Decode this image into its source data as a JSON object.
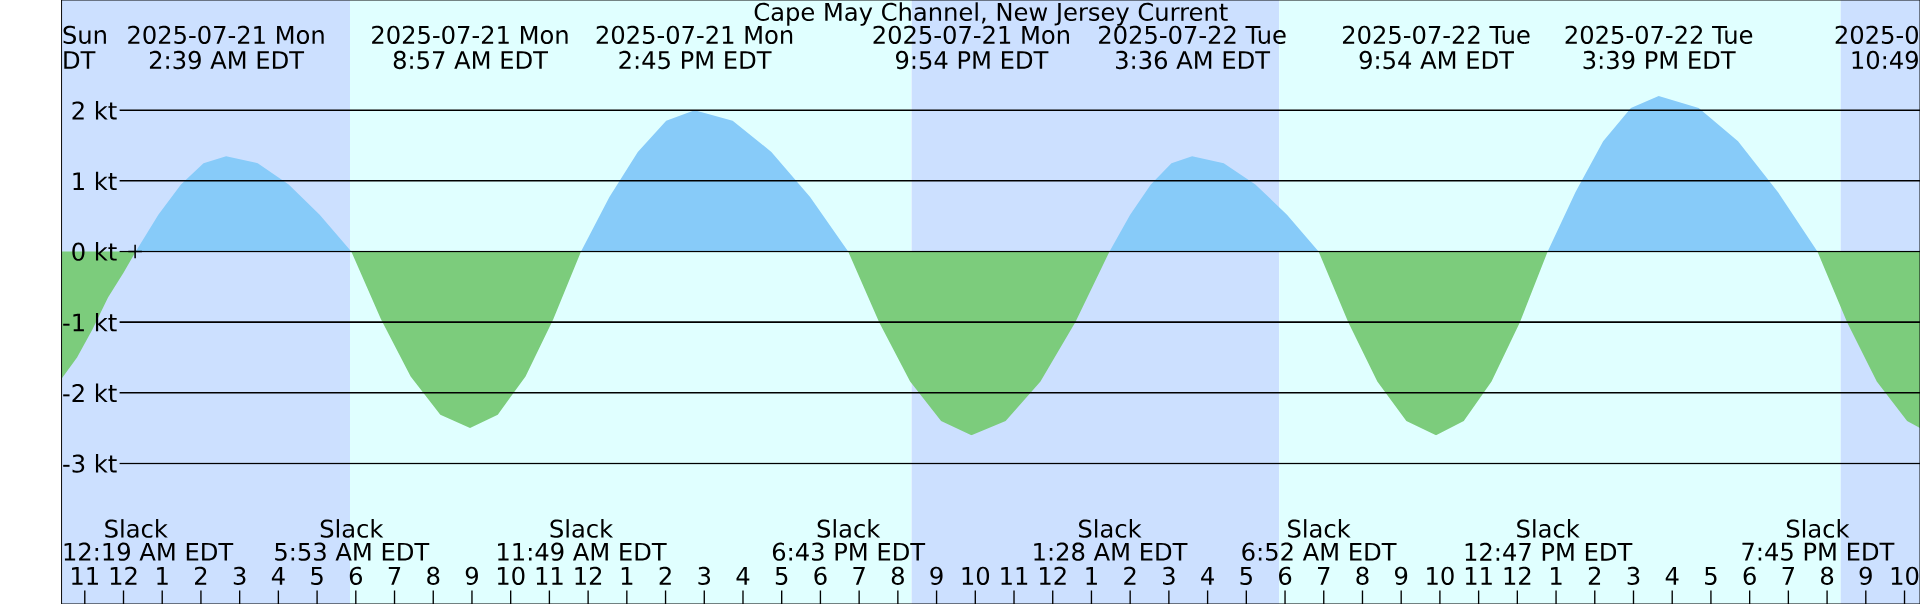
{
  "chart_data": {
    "type": "area",
    "title": "Cape May Channel, New Jersey Current",
    "xlim": [
      "2025-07-20T22:24",
      "2025-07-22T22:24"
    ],
    "ylim": [
      -4.99,
      3.56
    ],
    "xticks": [
      {
        "value": "2025-07-20T23:00",
        "label": "11"
      },
      {
        "value": "2025-07-21T00:00",
        "label": "12"
      },
      {
        "value": "2025-07-21T01:00",
        "label": "1"
      },
      {
        "value": "2025-07-21T02:00",
        "label": "2"
      },
      {
        "value": "2025-07-21T03:00",
        "label": "3"
      },
      {
        "value": "2025-07-21T04:00",
        "label": "4"
      },
      {
        "value": "2025-07-21T05:00",
        "label": "5"
      },
      {
        "value": "2025-07-21T06:00",
        "label": "6"
      },
      {
        "value": "2025-07-21T07:00",
        "label": "7"
      },
      {
        "value": "2025-07-21T08:00",
        "label": "8"
      },
      {
        "value": "2025-07-21T09:00",
        "label": "9"
      },
      {
        "value": "2025-07-21T10:00",
        "label": "10"
      },
      {
        "value": "2025-07-21T11:00",
        "label": "11"
      },
      {
        "value": "2025-07-21T12:00",
        "label": "12"
      },
      {
        "value": "2025-07-21T13:00",
        "label": "1"
      },
      {
        "value": "2025-07-21T14:00",
        "label": "2"
      },
      {
        "value": "2025-07-21T15:00",
        "label": "3"
      },
      {
        "value": "2025-07-21T16:00",
        "label": "4"
      },
      {
        "value": "2025-07-21T17:00",
        "label": "5"
      },
      {
        "value": "2025-07-21T18:00",
        "label": "6"
      },
      {
        "value": "2025-07-21T19:00",
        "label": "7"
      },
      {
        "value": "2025-07-21T20:00",
        "label": "8"
      },
      {
        "value": "2025-07-21T21:00",
        "label": "9"
      },
      {
        "value": "2025-07-21T22:00",
        "label": "10"
      },
      {
        "value": "2025-07-21T23:00",
        "label": "11"
      },
      {
        "value": "2025-07-22T00:00",
        "label": "12"
      },
      {
        "value": "2025-07-22T01:00",
        "label": "1"
      },
      {
        "value": "2025-07-22T02:00",
        "label": "2"
      },
      {
        "value": "2025-07-22T03:00",
        "label": "3"
      },
      {
        "value": "2025-07-22T04:00",
        "label": "4"
      },
      {
        "value": "2025-07-22T05:00",
        "label": "5"
      },
      {
        "value": "2025-07-22T06:00",
        "label": "6"
      },
      {
        "value": "2025-07-22T07:00",
        "label": "7"
      },
      {
        "value": "2025-07-22T08:00",
        "label": "8"
      },
      {
        "value": "2025-07-22T09:00",
        "label": "9"
      },
      {
        "value": "2025-07-22T10:00",
        "label": "10"
      },
      {
        "value": "2025-07-22T11:00",
        "label": "11"
      },
      {
        "value": "2025-07-22T12:00",
        "label": "12"
      },
      {
        "value": "2025-07-22T13:00",
        "label": "1"
      },
      {
        "value": "2025-07-22T14:00",
        "label": "2"
      },
      {
        "value": "2025-07-22T15:00",
        "label": "3"
      },
      {
        "value": "2025-07-22T16:00",
        "label": "4"
      },
      {
        "value": "2025-07-22T17:00",
        "label": "5"
      },
      {
        "value": "2025-07-22T18:00",
        "label": "6"
      },
      {
        "value": "2025-07-22T19:00",
        "label": "7"
      },
      {
        "value": "2025-07-22T20:00",
        "label": "8"
      },
      {
        "value": "2025-07-22T21:00",
        "label": "9"
      },
      {
        "value": "2025-07-22T22:00",
        "label": "10"
      }
    ],
    "yticks": [
      {
        "value": 2,
        "label": "2 kt"
      },
      {
        "value": 1,
        "label": "1 kt"
      },
      {
        "value": 0,
        "label": "0 kt"
      },
      {
        "value": -1,
        "label": "-1 kt"
      },
      {
        "value": -2,
        "label": "-2 kt"
      },
      {
        "value": -3,
        "label": "-3 kt"
      }
    ],
    "grid": "y",
    "bands": [
      {
        "axis": "x",
        "from": "2025-07-20T22:24",
        "to": "2025-07-21T05:51",
        "color": "#cce0ff"
      },
      {
        "axis": "x",
        "from": "2025-07-21T05:51",
        "to": "2025-07-21T20:21",
        "color": "#e0ffff"
      },
      {
        "axis": "x",
        "from": "2025-07-21T20:21",
        "to": "2025-07-22T05:51",
        "color": "#cce0ff"
      },
      {
        "axis": "x",
        "from": "2025-07-22T05:51",
        "to": "2025-07-22T20:21",
        "color": "#e0ffff"
      },
      {
        "axis": "x",
        "from": "2025-07-22T20:21",
        "to": "2025-07-22T22:24",
        "color": "#cce0ff"
      }
    ],
    "series": [
      {
        "color": "#87cbf9",
        "x": [
          "2025-07-21T00:19",
          "2025-07-21T00:54",
          "2025-07-21T01:29",
          "2025-07-21T02:04",
          "2025-07-21T02:39",
          "2025-07-21T03:28",
          "2025-07-21T04:16",
          "2025-07-21T05:04",
          "2025-07-21T05:53",
          "2025-07-21T11:49",
          "2025-07-21T12:33",
          "2025-07-21T13:17",
          "2025-07-21T14:01",
          "2025-07-21T14:45",
          "2025-07-21T15:44",
          "2025-07-21T16:44",
          "2025-07-21T17:44",
          "2025-07-21T18:43",
          "2025-07-22T01:28",
          "2025-07-22T02:00",
          "2025-07-22T02:32",
          "2025-07-22T03:04",
          "2025-07-22T03:36",
          "2025-07-22T04:25",
          "2025-07-22T05:14",
          "2025-07-22T06:03",
          "2025-07-22T06:52",
          "2025-07-22T12:47",
          "2025-07-22T13:30",
          "2025-07-22T14:13",
          "2025-07-22T14:56",
          "2025-07-22T15:39",
          "2025-07-22T16:41",
          "2025-07-22T17:42",
          "2025-07-22T18:44",
          "2025-07-22T19:45"
        ],
        "values": [
          0,
          0.52,
          0.95,
          1.25,
          1.35,
          1.25,
          0.95,
          0.52,
          0,
          0,
          0.77,
          1.41,
          1.85,
          2.0,
          1.85,
          1.41,
          0.77,
          0,
          0,
          0.52,
          0.95,
          1.25,
          1.35,
          1.25,
          0.95,
          0.52,
          0,
          0,
          0.84,
          1.56,
          2.03,
          2.2,
          2.03,
          1.56,
          0.84,
          0
        ]
      },
      {
        "color": "#7ccc7c",
        "x": [
          "2025-07-20T22:24",
          "2025-07-20T22:48",
          "2025-07-20T23:12",
          "2025-07-20T23:36",
          "2025-07-21T00:00",
          "2025-07-21T00:19",
          "2025-07-21T05:53",
          "2025-07-21T06:39",
          "2025-07-21T07:25",
          "2025-07-21T08:11",
          "2025-07-21T08:57",
          "2025-07-21T09:40",
          "2025-07-21T10:23",
          "2025-07-21T11:06",
          "2025-07-21T11:49",
          "2025-07-21T18:43",
          "2025-07-21T19:31",
          "2025-07-21T20:19",
          "2025-07-21T21:07",
          "2025-07-21T21:54",
          "2025-07-21T22:47",
          "2025-07-21T23:41",
          "2025-07-22T00:35",
          "2025-07-22T01:28",
          "2025-07-22T06:52",
          "2025-07-22T07:38",
          "2025-07-22T08:23",
          "2025-07-22T09:08",
          "2025-07-22T09:54",
          "2025-07-22T10:37",
          "2025-07-22T11:20",
          "2025-07-22T12:04",
          "2025-07-22T12:47",
          "2025-07-22T19:45",
          "2025-07-22T20:31",
          "2025-07-22T21:17",
          "2025-07-22T22:04",
          "2025-07-22T22:24"
        ],
        "values": [
          -1.8,
          -1.5,
          -1.1,
          -0.65,
          -0.3,
          0,
          0,
          -0.96,
          -1.77,
          -2.31,
          -2.5,
          -2.31,
          -1.77,
          -0.96,
          0,
          0,
          -1.0,
          -1.84,
          -2.4,
          -2.6,
          -2.4,
          -1.84,
          -1.0,
          0,
          0,
          -1.0,
          -1.84,
          -2.4,
          -2.6,
          -2.4,
          -1.84,
          -1.0,
          0,
          0,
          -1.0,
          -1.84,
          -2.4,
          -2.5
        ]
      },
      {
        "type": "scatter",
        "marker": "cross",
        "color": "#000000",
        "x": [
          "2025-07-21T00:18"
        ],
        "values": [
          0
        ]
      }
    ],
    "annotations": [
      "Sun",
      "DT",
      "2025-07-21 Mon",
      "2:39 AM EDT",
      "2025-07-21 Mon",
      "8:57 AM EDT",
      "2025-07-21 Mon",
      "2:45 PM EDT",
      "2025-07-21 Mon",
      "9:54 PM EDT",
      "2025-07-22 Tue",
      "3:36 AM EDT",
      "2025-07-22 Tue",
      "9:54 AM EDT",
      "2025-07-22 Tue",
      "3:39 PM EDT",
      "2025-0",
      "10:49",
      "Slack",
      "12:19 AM EDT",
      "Slack",
      "5:53 AM EDT",
      "Slack",
      "11:49 AM EDT",
      "Slack",
      "6:43 PM EDT",
      "Slack",
      "1:28 AM EDT",
      "Slack",
      "6:52 AM EDT",
      "Slack",
      "12:47 PM EDT",
      "Slack",
      "7:45 PM EDT"
    ]
  }
}
